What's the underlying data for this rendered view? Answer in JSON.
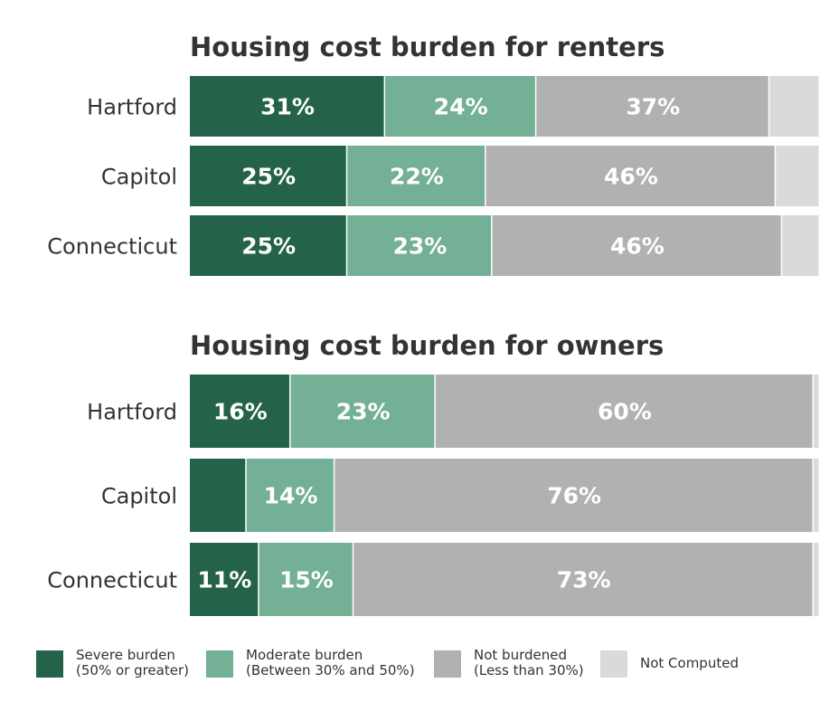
{
  "chart_data": [
    {
      "type": "bar",
      "orientation": "horizontal",
      "stacked": true,
      "title": "Housing cost burden for renters",
      "categories": [
        "Hartford",
        "Capitol",
        "Connecticut"
      ],
      "series": [
        {
          "name": "Severe burden (50% or greater)",
          "values": [
            31,
            25,
            25
          ],
          "labels": [
            "31%",
            "25%",
            "25%"
          ],
          "color": "#24634A"
        },
        {
          "name": "Moderate burden (Between 30% and 50%)",
          "values": [
            24,
            22,
            23
          ],
          "labels": [
            "24%",
            "22%",
            "23%"
          ],
          "color": "#73B096"
        },
        {
          "name": "Not burdened (Less than 30%)",
          "values": [
            37,
            46,
            46
          ],
          "labels": [
            "37%",
            "46%",
            "46%"
          ],
          "color": "#B1B1B1"
        },
        {
          "name": "Not Computed",
          "values": [
            8,
            7,
            6
          ],
          "labels": [
            "",
            "",
            ""
          ],
          "color": "#DADADA"
        }
      ],
      "xlim": [
        0,
        100
      ],
      "grid": false
    },
    {
      "type": "bar",
      "orientation": "horizontal",
      "stacked": true,
      "title": "Housing cost burden for owners",
      "categories": [
        "Hartford",
        "Capitol",
        "Connecticut"
      ],
      "series": [
        {
          "name": "Severe burden (50% or greater)",
          "values": [
            16,
            9,
            11
          ],
          "labels": [
            "16%",
            "",
            "11%"
          ],
          "color": "#24634A"
        },
        {
          "name": "Moderate burden (Between 30% and 50%)",
          "values": [
            23,
            14,
            15
          ],
          "labels": [
            "23%",
            "14%",
            "15%"
          ],
          "color": "#73B096"
        },
        {
          "name": "Not burdened (Less than 30%)",
          "values": [
            60,
            76,
            73
          ],
          "labels": [
            "60%",
            "76%",
            "73%"
          ],
          "color": "#B1B1B1"
        },
        {
          "name": "Not Computed",
          "values": [
            1,
            1,
            1
          ],
          "labels": [
            "",
            "",
            ""
          ],
          "color": "#DADADA"
        }
      ],
      "xlim": [
        0,
        100
      ],
      "grid": false
    }
  ],
  "legend": {
    "placement": "bottom",
    "items": [
      {
        "line1": "Severe burden",
        "line2": "(50% or greater)",
        "color": "#24634A"
      },
      {
        "line1": "Moderate burden",
        "line2": "(Between 30% and 50%)",
        "color": "#73B096"
      },
      {
        "line1": "Not burdened",
        "line2": "(Less than 30%)",
        "color": "#B1B1B1"
      },
      {
        "line1": "Not Computed",
        "line2": "",
        "color": "#DADADA"
      }
    ]
  }
}
